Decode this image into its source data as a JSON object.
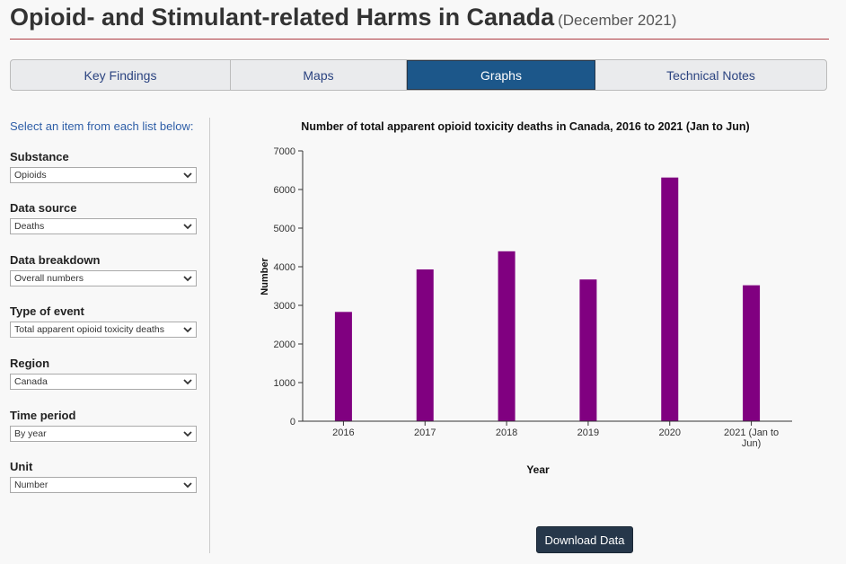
{
  "header": {
    "title": "Opioid- and Stimulant-related Harms in Canada",
    "subtitle": "(December 2021)"
  },
  "tabs": [
    {
      "label": "Key Findings",
      "active": false
    },
    {
      "label": "Maps",
      "active": false
    },
    {
      "label": "Graphs",
      "active": true
    },
    {
      "label": "Technical Notes",
      "active": false
    }
  ],
  "sidebar": {
    "intro": "Select an item from each list below:",
    "fields": [
      {
        "label": "Substance",
        "value": "Opioids"
      },
      {
        "label": "Data source",
        "value": "Deaths"
      },
      {
        "label": "Data breakdown",
        "value": "Overall numbers"
      },
      {
        "label": "Type of event",
        "value": "Total apparent opioid toxicity deaths"
      },
      {
        "label": "Region",
        "value": "Canada"
      },
      {
        "label": "Time period",
        "value": "By year"
      },
      {
        "label": "Unit",
        "value": "Number"
      }
    ]
  },
  "download_label": "Download Data",
  "colors": {
    "bar": "#800080",
    "active_tab": "#1c578a",
    "accent_rule": "#af3c43"
  },
  "chart_data": {
    "type": "bar",
    "title": "Number of total apparent opioid toxicity deaths in Canada, 2016 to 2021 (Jan to Jun)",
    "xlabel": "Year",
    "ylabel": "Number",
    "categories": [
      "2016",
      "2017",
      "2018",
      "2019",
      "2020",
      "2021 (Jan to Jun)"
    ],
    "values": [
      2830,
      3930,
      4400,
      3670,
      6310,
      3520
    ],
    "ylim": [
      0,
      7000
    ],
    "yticks": [
      0,
      1000,
      2000,
      3000,
      4000,
      5000,
      6000,
      7000
    ],
    "grid": false
  }
}
